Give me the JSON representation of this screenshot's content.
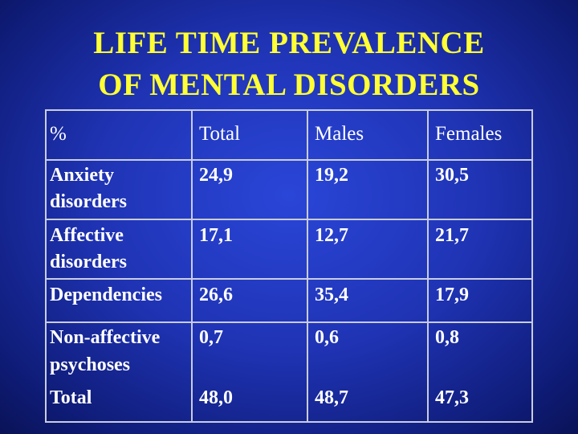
{
  "title": {
    "line1": "LIFE TIME PREVALENCE",
    "line2": "OF MENTAL DISORDERS"
  },
  "table": {
    "headers": [
      "%",
      "Total",
      "Males",
      "Females"
    ],
    "rows": [
      {
        "label_line1": "Anxiety",
        "label_line2": "disorders",
        "total": "24,9",
        "males": "19,2",
        "females": "30,5"
      },
      {
        "label_line1": "Affective",
        "label_line2": "disorders",
        "total": "17,1",
        "males": "12,7",
        "females": "21,7"
      },
      {
        "label_line1": "Dependencies",
        "label_line2": "",
        "total": "26,6",
        "males": "35,4",
        "females": "17,9"
      },
      {
        "label_line1": "Non-affective",
        "label_line2": "psychoses",
        "total": "0,7",
        "males": "0,6",
        "females": "0,8"
      },
      {
        "label_line1": "Total",
        "label_line2": "",
        "total": "48,0",
        "males": "48,7",
        "females": "47,3"
      }
    ]
  },
  "colors": {
    "title": "#ffff33",
    "text": "#ffffff",
    "grid_lines": "#c9cde0",
    "background": "#1f33b4"
  }
}
